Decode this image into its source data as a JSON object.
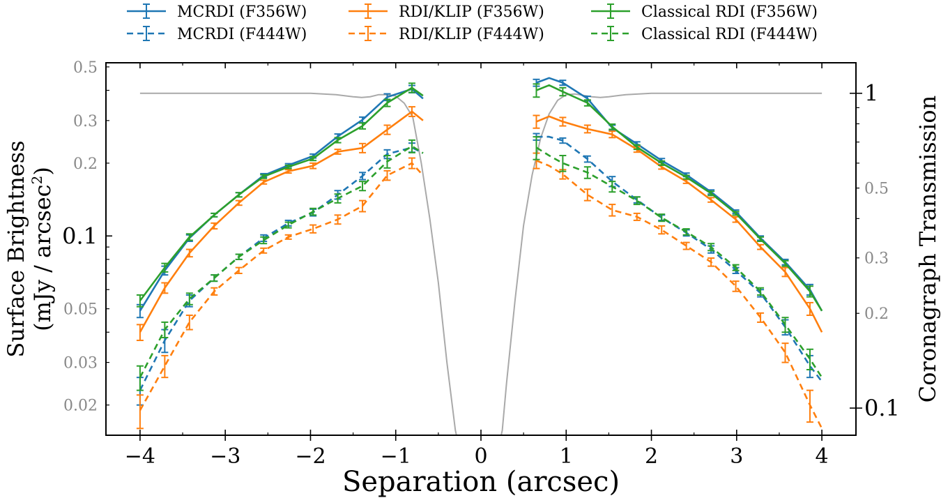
{
  "chart_data": {
    "type": "line",
    "xlabel": "Separation (arcsec)",
    "ylabel_left_line1": "Surface Brightness",
    "ylabel_left_line2": "(mJy / arcsec",
    "ylabel_left_sup": "2",
    "ylabel_left_close": ")",
    "ylabel_right": "Coronagraph Transmission",
    "xlim": [
      -4.4,
      4.4
    ],
    "ylim_left": [
      0.015,
      0.52
    ],
    "yscale_left": "log",
    "ylim_right": [
      0.082,
      1.25
    ],
    "yscale_right": "log",
    "x_ticks": [
      -4,
      -3,
      -2,
      -1,
      0,
      1,
      2,
      3,
      4
    ],
    "x_tick_labels": [
      "−4",
      "−3",
      "−2",
      "−1",
      "0",
      "1",
      "2",
      "3",
      "4"
    ],
    "y_left_major_ticks": [
      0.1
    ],
    "y_left_major_labels": [
      "0.1"
    ],
    "y_left_minor_ticks": [
      0.02,
      0.03,
      0.05,
      0.2,
      0.3,
      0.5
    ],
    "y_left_minor_labels": [
      "0.02",
      "0.03",
      "0.05",
      "0.2",
      "0.3",
      "0.5"
    ],
    "y_right_major_ticks": [
      0.1,
      1
    ],
    "y_right_major_labels": [
      "0.1",
      "1"
    ],
    "y_right_minor_ticks": [
      0.2,
      0.3,
      0.5
    ],
    "y_right_minor_labels": [
      "0.2",
      "0.3",
      "0.5"
    ],
    "legend_position": "top, above plot, 3 columns",
    "colors": {
      "blue": "#1f77b4",
      "orange": "#ff7f0e",
      "green": "#2ca02c",
      "gray": "#a9a9a9"
    },
    "series": [
      {
        "name": "MCRDI (F356W)",
        "color": "#1f77b4",
        "style": "solid",
        "left": {
          "x": [
            -4.0,
            -3.71,
            -3.42,
            -3.13,
            -2.84,
            -2.55,
            -2.26,
            -1.97,
            -1.68,
            -1.39,
            -1.1,
            -0.81,
            -0.68
          ],
          "y": [
            0.049,
            0.072,
            0.098,
            0.122,
            0.148,
            0.178,
            0.196,
            0.214,
            0.258,
            0.302,
            0.375,
            0.405,
            0.37
          ],
          "err": [
            0.003,
            0.003,
            0.003,
            0.002,
            0.003,
            0.003,
            0.003,
            0.004,
            0.006,
            0.008,
            0.012,
            0.014,
            null
          ]
        },
        "right": {
          "x": [
            0.65,
            0.8,
            0.96,
            1.25,
            1.54,
            1.83,
            2.12,
            2.41,
            2.7,
            2.99,
            3.28,
            3.57,
            3.86,
            4.0
          ],
          "y": [
            0.43,
            0.45,
            0.43,
            0.37,
            0.28,
            0.24,
            0.205,
            0.179,
            0.152,
            0.126,
            0.098,
            0.078,
            0.06,
            0.049
          ],
          "err": [
            0.014,
            null,
            0.01,
            0.008,
            0.007,
            0.005,
            0.004,
            0.003,
            0.003,
            0.002,
            0.002,
            0.002,
            0.003,
            null
          ]
        }
      },
      {
        "name": "MCRDI (F444W)",
        "color": "#1f77b4",
        "style": "dashed",
        "left": {
          "x": [
            -4.0,
            -3.71,
            -3.42,
            -3.13,
            -2.84,
            -2.55,
            -2.26,
            -1.97,
            -1.68,
            -1.39,
            -1.1,
            -0.81,
            -0.68
          ],
          "y": [
            0.023,
            0.037,
            0.054,
            0.067,
            0.082,
            0.098,
            0.113,
            0.125,
            0.148,
            0.177,
            0.218,
            0.232,
            0.22
          ],
          "err": [
            0.003,
            0.004,
            0.003,
            0.002,
            0.002,
            0.003,
            0.003,
            0.004,
            0.006,
            0.006,
            0.009,
            0.01,
            null
          ]
        },
        "right": {
          "x": [
            0.65,
            0.8,
            0.96,
            1.25,
            1.54,
            1.83,
            2.12,
            2.41,
            2.7,
            2.99,
            3.28,
            3.57,
            3.86,
            4.0
          ],
          "y": [
            0.257,
            0.257,
            0.248,
            0.208,
            0.168,
            0.141,
            0.119,
            0.103,
            0.088,
            0.072,
            0.058,
            0.042,
            0.029,
            0.025
          ],
          "err": [
            0.008,
            null,
            0.006,
            0.006,
            0.008,
            0.004,
            0.003,
            0.003,
            0.003,
            0.002,
            0.002,
            0.003,
            0.003,
            null
          ]
        }
      },
      {
        "name": "RDI/KLIP (F356W)",
        "color": "#ff7f0e",
        "style": "solid",
        "left": {
          "x": [
            -4.0,
            -3.71,
            -3.42,
            -3.13,
            -2.84,
            -2.55,
            -2.26,
            -1.97,
            -1.68,
            -1.39,
            -1.1,
            -0.81,
            -0.68
          ],
          "y": [
            0.04,
            0.061,
            0.085,
            0.11,
            0.137,
            0.167,
            0.185,
            0.195,
            0.223,
            0.231,
            0.275,
            0.327,
            0.3
          ],
          "err": [
            0.003,
            0.003,
            0.003,
            0.003,
            0.003,
            0.003,
            0.003,
            0.005,
            0.005,
            0.01,
            0.012,
            0.015,
            null
          ]
        },
        "right": {
          "x": [
            0.65,
            0.8,
            0.96,
            1.25,
            1.54,
            1.83,
            2.12,
            2.41,
            2.7,
            2.99,
            3.28,
            3.57,
            3.86,
            4.0
          ],
          "y": [
            0.297,
            0.312,
            0.297,
            0.277,
            0.263,
            0.228,
            0.193,
            0.168,
            0.141,
            0.117,
            0.09,
            0.071,
            0.05,
            0.04
          ],
          "err": [
            0.018,
            null,
            0.012,
            0.01,
            0.008,
            0.006,
            0.004,
            0.003,
            0.003,
            0.003,
            0.002,
            0.003,
            0.003,
            null
          ]
        }
      },
      {
        "name": "RDI/KLIP (F444W)",
        "color": "#ff7f0e",
        "style": "dashed",
        "left": {
          "x": [
            -4.0,
            -3.71,
            -3.42,
            -3.13,
            -2.84,
            -2.55,
            -2.26,
            -1.97,
            -1.68,
            -1.39,
            -1.1,
            -0.81,
            -0.68
          ],
          "y": [
            0.019,
            0.029,
            0.044,
            0.059,
            0.072,
            0.087,
            0.099,
            0.107,
            0.117,
            0.133,
            0.178,
            0.2,
            0.178
          ],
          "err": [
            0.003,
            0.003,
            0.003,
            0.002,
            0.002,
            0.002,
            0.002,
            0.004,
            0.005,
            0.007,
            0.008,
            0.01,
            null
          ]
        },
        "right": {
          "x": [
            0.65,
            0.8,
            0.96,
            1.25,
            1.54,
            1.83,
            2.12,
            2.41,
            2.7,
            2.99,
            3.28,
            3.57,
            3.86,
            4.0
          ],
          "y": [
            0.205,
            0.195,
            0.18,
            0.148,
            0.128,
            0.12,
            0.106,
            0.091,
            0.078,
            0.062,
            0.046,
            0.033,
            0.02,
            0.016
          ],
          "err": [
            0.015,
            null,
            0.008,
            0.008,
            0.007,
            0.004,
            0.004,
            0.003,
            0.003,
            0.003,
            0.002,
            0.003,
            0.003,
            null
          ]
        }
      },
      {
        "name": "Classical RDI (F356W)",
        "color": "#2ca02c",
        "style": "solid",
        "left": {
          "x": [
            -4.0,
            -3.71,
            -3.42,
            -3.13,
            -2.84,
            -2.55,
            -2.26,
            -1.97,
            -1.68,
            -1.39,
            -1.1,
            -0.81,
            -0.68
          ],
          "y": [
            0.054,
            0.074,
            0.099,
            0.122,
            0.148,
            0.176,
            0.193,
            0.209,
            0.249,
            0.285,
            0.355,
            0.41,
            0.38
          ],
          "err": [
            0.003,
            0.003,
            0.003,
            0.002,
            0.003,
            0.003,
            0.003,
            0.004,
            0.006,
            0.008,
            0.012,
            0.018,
            null
          ]
        },
        "right": {
          "x": [
            0.65,
            0.8,
            0.96,
            1.25,
            1.54,
            1.83,
            2.12,
            2.41,
            2.7,
            2.99,
            3.28,
            3.57,
            3.86,
            4.0
          ],
          "y": [
            0.4,
            0.42,
            0.395,
            0.355,
            0.283,
            0.233,
            0.2,
            0.175,
            0.15,
            0.124,
            0.097,
            0.077,
            0.059,
            0.049
          ],
          "err": [
            0.025,
            null,
            0.015,
            0.01,
            0.007,
            0.005,
            0.004,
            0.003,
            0.003,
            0.002,
            0.002,
            0.002,
            0.003,
            null
          ]
        }
      },
      {
        "name": "Classical RDI (F444W)",
        "color": "#2ca02c",
        "style": "dashed",
        "left": {
          "x": [
            -4.0,
            -3.71,
            -3.42,
            -3.13,
            -2.84,
            -2.55,
            -2.26,
            -1.97,
            -1.68,
            -1.39,
            -1.1,
            -0.81,
            -0.68
          ],
          "y": [
            0.026,
            0.041,
            0.055,
            0.067,
            0.082,
            0.096,
            0.111,
            0.126,
            0.143,
            0.161,
            0.203,
            0.235,
            0.22
          ],
          "err": [
            0.003,
            0.003,
            0.003,
            0.002,
            0.002,
            0.003,
            0.003,
            0.004,
            0.006,
            0.007,
            0.012,
            0.014,
            null
          ]
        },
        "right": {
          "x": [
            0.65,
            0.8,
            0.96,
            1.25,
            1.54,
            1.83,
            2.12,
            2.41,
            2.7,
            2.99,
            3.28,
            3.57,
            3.86,
            4.0
          ],
          "y": [
            0.232,
            0.215,
            0.2,
            0.183,
            0.16,
            0.14,
            0.119,
            0.104,
            0.09,
            0.074,
            0.059,
            0.043,
            0.031,
            0.026
          ],
          "err": [
            0.025,
            null,
            0.015,
            0.01,
            0.008,
            0.005,
            0.004,
            0.003,
            0.003,
            0.002,
            0.002,
            0.003,
            0.003,
            null
          ]
        }
      }
    ],
    "transmission_curve": {
      "name": "Coronagraph Transmission",
      "color": "#a9a9a9",
      "x": [
        -4.0,
        -3.5,
        -3.0,
        -2.5,
        -2.0,
        -1.7,
        -1.5,
        -1.4,
        -1.3,
        -1.2,
        -1.1,
        -1.0,
        -0.9,
        -0.8,
        -0.7,
        -0.6,
        -0.5,
        -0.4,
        -0.3,
        -0.27,
        0.22,
        0.25,
        0.3,
        0.4,
        0.5,
        0.6,
        0.7,
        0.8,
        0.9,
        1.0,
        1.1,
        1.2,
        1.3,
        1.4,
        1.5,
        1.7,
        2.0,
        2.5,
        3.0,
        3.5,
        4.0
      ],
      "y": [
        1.0,
        1.0,
        1.0,
        1.0,
        1.0,
        0.99,
        0.975,
        0.97,
        0.975,
        0.99,
        0.99,
        0.98,
        0.93,
        0.84,
        0.6,
        0.4,
        0.25,
        0.14,
        0.085,
        0.078,
        0.078,
        0.085,
        0.12,
        0.22,
        0.38,
        0.55,
        0.72,
        0.86,
        0.95,
        0.99,
        0.995,
        0.985,
        0.975,
        0.97,
        0.975,
        0.99,
        1.0,
        1.0,
        1.0,
        1.0,
        1.0
      ]
    }
  }
}
